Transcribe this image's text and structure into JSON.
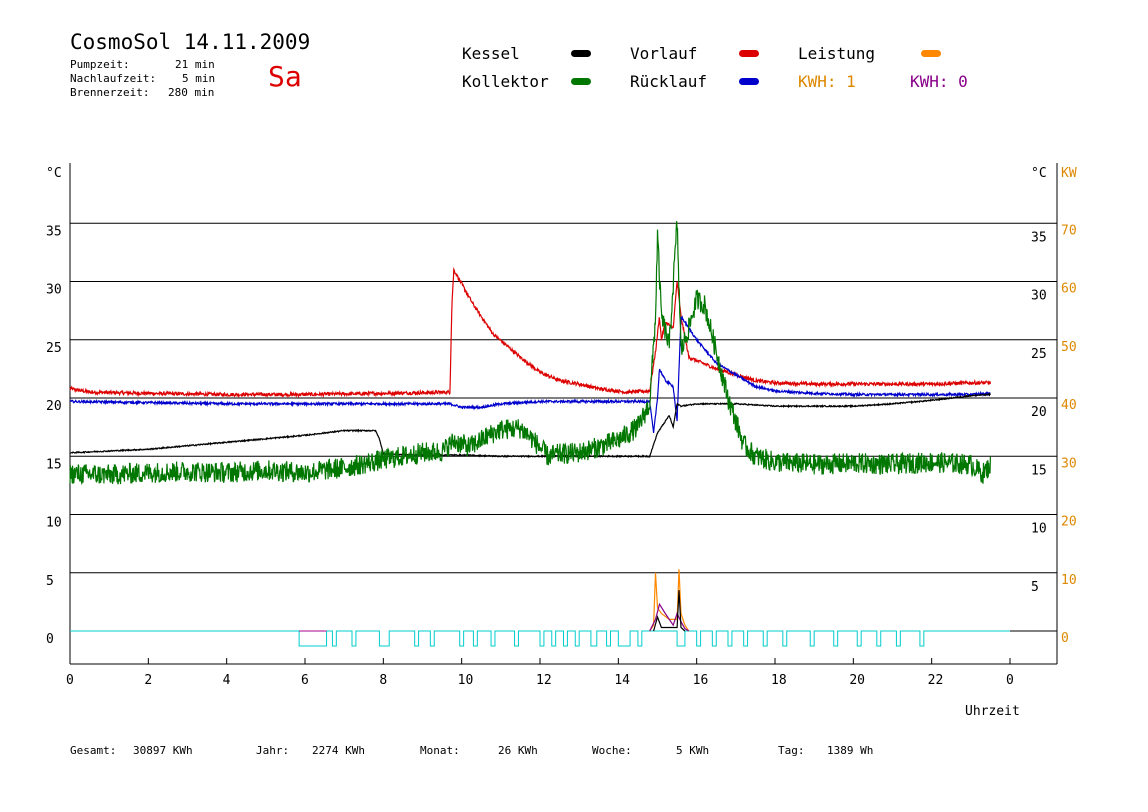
{
  "header": {
    "title": "CosmoSol 14.11.2009",
    "day": "Sa",
    "stats": [
      {
        "label": "Pumpzeit:",
        "value": "21 min"
      },
      {
        "label": "Nachlaufzeit:",
        "value": "5 min"
      },
      {
        "label": "Brennerzeit:",
        "value": "280 min"
      }
    ]
  },
  "legend": {
    "kessel": {
      "label": "Kessel",
      "color": "#000000"
    },
    "kollektor": {
      "label": "Kollektor",
      "color": "#007700"
    },
    "vorlauf": {
      "label": "Vorlauf",
      "color": "#dd0000"
    },
    "ruecklauf": {
      "label": "Rücklauf",
      "color": "#0000cc"
    },
    "leistung": {
      "label": "Leistung",
      "color": "#ff8800"
    },
    "kwh1": {
      "label": "KWH: 1",
      "color": "#dd8800"
    },
    "kwh0": {
      "label": "KWH: 0",
      "color": "#880088"
    }
  },
  "footer": [
    {
      "label": "Gesamt:",
      "value": "30897 KWh"
    },
    {
      "label": "Jahr:",
      "value": "2274 KWh"
    },
    {
      "label": "Monat:",
      "value": "26 KWh"
    },
    {
      "label": "Woche:",
      "value": "5 KWh"
    },
    {
      "label": "Tag:",
      "value": "1389 Wh"
    }
  ],
  "chart_data": {
    "type": "line",
    "xlabel": "Uhrzeit",
    "ylabel_left": "°C",
    "ylabel_right": "°C",
    "ylabel_right2": "KW",
    "xlim": [
      0,
      24
    ],
    "ylim": [
      -3,
      40
    ],
    "x_ticks": [
      "0",
      "2",
      "4",
      "6",
      "8",
      "10",
      "12",
      "14",
      "16",
      "18",
      "20",
      "22",
      "0"
    ],
    "y_ticks_left": [
      0,
      5,
      10,
      15,
      20,
      25,
      30,
      35
    ],
    "y_ticks_right": [
      5,
      10,
      15,
      20,
      25,
      30,
      35
    ],
    "y_ticks_kw": [
      0,
      10,
      20,
      30,
      40,
      50,
      60,
      70
    ],
    "series": [
      {
        "name": "Vorlauf",
        "color": "#dd0000",
        "noise": 0.15,
        "points": [
          [
            0,
            20.8
          ],
          [
            0.5,
            20.5
          ],
          [
            2,
            20.4
          ],
          [
            4,
            20.3
          ],
          [
            6,
            20.3
          ],
          [
            8,
            20.4
          ],
          [
            9.7,
            20.5
          ],
          [
            9.75,
            28
          ],
          [
            9.8,
            31
          ],
          [
            10.3,
            28
          ],
          [
            10.8,
            25.5
          ],
          [
            11.5,
            23.5
          ],
          [
            12,
            22.2
          ],
          [
            12.5,
            21.5
          ],
          [
            13,
            21.2
          ],
          [
            13.5,
            20.8
          ],
          [
            14.2,
            20.5
          ],
          [
            14.8,
            20.6
          ],
          [
            14.95,
            24
          ],
          [
            15.05,
            27
          ],
          [
            15.1,
            25
          ],
          [
            15.2,
            26.5
          ],
          [
            15.4,
            26
          ],
          [
            15.5,
            30
          ],
          [
            15.6,
            27
          ],
          [
            15.8,
            23.5
          ],
          [
            16.5,
            22.5
          ],
          [
            17,
            22
          ],
          [
            17.5,
            21.5
          ],
          [
            18,
            21.3
          ],
          [
            19,
            21.2
          ],
          [
            20,
            21.2
          ],
          [
            21,
            21.2
          ],
          [
            22,
            21.2
          ],
          [
            23,
            21.3
          ],
          [
            23.5,
            21.3
          ]
        ]
      },
      {
        "name": "Rücklauf",
        "color": "#0000cc",
        "noise": 0.1,
        "points": [
          [
            0,
            19.7
          ],
          [
            2,
            19.6
          ],
          [
            4,
            19.5
          ],
          [
            6,
            19.5
          ],
          [
            8,
            19.5
          ],
          [
            9.7,
            19.5
          ],
          [
            10,
            19.2
          ],
          [
            10.5,
            19.2
          ],
          [
            11,
            19.5
          ],
          [
            12,
            19.7
          ],
          [
            13,
            19.7
          ],
          [
            14,
            19.7
          ],
          [
            14.8,
            19.7
          ],
          [
            14.9,
            17
          ],
          [
            15.0,
            20
          ],
          [
            15.05,
            22.5
          ],
          [
            15.2,
            21.5
          ],
          [
            15.4,
            21
          ],
          [
            15.5,
            18
          ],
          [
            15.6,
            27
          ],
          [
            16,
            25
          ],
          [
            16.5,
            23
          ],
          [
            17,
            22
          ],
          [
            17.5,
            21
          ],
          [
            18,
            20.6
          ],
          [
            19,
            20.4
          ],
          [
            20,
            20.3
          ],
          [
            21,
            20.3
          ],
          [
            22,
            20.3
          ],
          [
            23,
            20.3
          ],
          [
            23.5,
            20.4
          ]
        ]
      },
      {
        "name": "Kessel",
        "color": "#000000",
        "noise": 0.05,
        "points": [
          [
            0,
            15.3
          ],
          [
            2,
            15.6
          ],
          [
            4,
            16.2
          ],
          [
            6,
            16.8
          ],
          [
            7,
            17.2
          ],
          [
            7.8,
            17.2
          ],
          [
            7.9,
            16.5
          ],
          [
            8,
            15.2
          ],
          [
            9,
            15.1
          ],
          [
            10,
            15.1
          ],
          [
            11,
            15
          ],
          [
            12,
            15
          ],
          [
            13,
            15
          ],
          [
            14,
            15
          ],
          [
            14.8,
            15
          ],
          [
            15,
            17
          ],
          [
            15.3,
            18.5
          ],
          [
            15.4,
            17.5
          ],
          [
            15.5,
            19.5
          ],
          [
            15.6,
            19.3
          ],
          [
            16,
            19.5
          ],
          [
            17,
            19.5
          ],
          [
            18,
            19.3
          ],
          [
            19,
            19.3
          ],
          [
            20,
            19.3
          ],
          [
            21,
            19.5
          ],
          [
            22,
            19.8
          ],
          [
            23,
            20.2
          ],
          [
            23.5,
            20.3
          ]
        ]
      },
      {
        "name": "Kollektor",
        "color": "#007700",
        "noise": 0.9,
        "points": [
          [
            0,
            13.5
          ],
          [
            1,
            13.4
          ],
          [
            2,
            13.6
          ],
          [
            3,
            13.7
          ],
          [
            4,
            13.6
          ],
          [
            5,
            13.8
          ],
          [
            6,
            13.6
          ],
          [
            7,
            14
          ],
          [
            8,
            14.7
          ],
          [
            9,
            15.3
          ],
          [
            9.5,
            15.4
          ],
          [
            9.8,
            16.3
          ],
          [
            10.2,
            15.8
          ],
          [
            10.7,
            16.8
          ],
          [
            11,
            17.3
          ],
          [
            11.5,
            17.4
          ],
          [
            11.8,
            16.5
          ],
          [
            12.2,
            15
          ],
          [
            12.5,
            15.2
          ],
          [
            13,
            15.3
          ],
          [
            13.5,
            15.8
          ],
          [
            14,
            16.4
          ],
          [
            14.5,
            17.5
          ],
          [
            14.8,
            19.5
          ],
          [
            14.95,
            27
          ],
          [
            15.0,
            34
          ],
          [
            15.1,
            27
          ],
          [
            15.3,
            24.5
          ],
          [
            15.5,
            35
          ],
          [
            15.6,
            24
          ],
          [
            15.8,
            26
          ],
          [
            16,
            28.5
          ],
          [
            16.2,
            28
          ],
          [
            16.5,
            24
          ],
          [
            16.8,
            20
          ],
          [
            17,
            18
          ],
          [
            17.2,
            16
          ],
          [
            17.5,
            15
          ],
          [
            18,
            14.5
          ],
          [
            19,
            14.3
          ],
          [
            20,
            14.4
          ],
          [
            21,
            14.3
          ],
          [
            22,
            14.5
          ],
          [
            23,
            14.3
          ],
          [
            23.3,
            13.5
          ],
          [
            23.5,
            14.2
          ]
        ]
      },
      {
        "name": "Leistung",
        "color": "#ff8800",
        "noise": 0,
        "points": [
          [
            14.8,
            0
          ],
          [
            14.9,
            0.5
          ],
          [
            14.95,
            5
          ],
          [
            15.0,
            2
          ],
          [
            15.1,
            1.5
          ],
          [
            15.3,
            1
          ],
          [
            15.5,
            1
          ],
          [
            15.55,
            5.3
          ],
          [
            15.6,
            1.5
          ],
          [
            15.7,
            0.5
          ],
          [
            15.8,
            0
          ]
        ]
      },
      {
        "name": "KWH-0",
        "color": "#880088",
        "noise": 0,
        "points": [
          [
            14.8,
            0
          ],
          [
            14.95,
            1
          ],
          [
            15.05,
            2.3
          ],
          [
            15.2,
            1.5
          ],
          [
            15.4,
            0.5
          ],
          [
            15.5,
            1.5
          ],
          [
            15.6,
            0.8
          ],
          [
            15.7,
            0.2
          ],
          [
            15.8,
            0
          ]
        ]
      },
      {
        "name": "Kessel-Leistung",
        "color": "#000000",
        "noise": 0,
        "points": [
          [
            14.9,
            0
          ],
          [
            15.0,
            1.2
          ],
          [
            15.1,
            0.3
          ],
          [
            15.5,
            0.3
          ],
          [
            15.55,
            3.5
          ],
          [
            15.6,
            0.3
          ],
          [
            15.7,
            0
          ]
        ]
      }
    ],
    "pump_baseline": 0,
    "pump_intervals": [
      [
        5.85,
        6.55
      ],
      [
        6.7,
        6.8
      ],
      [
        7.2,
        7.3
      ],
      [
        7.9,
        8.15
      ],
      [
        8.8,
        8.9
      ],
      [
        9.2,
        9.3
      ],
      [
        9.95,
        10.05
      ],
      [
        10.3,
        10.4
      ],
      [
        10.75,
        10.85
      ],
      [
        11.35,
        11.45
      ],
      [
        12.0,
        12.1
      ],
      [
        12.3,
        12.4
      ],
      [
        12.6,
        12.7
      ],
      [
        12.9,
        13.0
      ],
      [
        13.3,
        13.45
      ],
      [
        13.7,
        13.8
      ],
      [
        14.0,
        14.3
      ],
      [
        14.5,
        14.6
      ],
      [
        15.5,
        15.7
      ],
      [
        16.0,
        16.1
      ],
      [
        16.4,
        16.5
      ],
      [
        16.8,
        16.9
      ],
      [
        17.2,
        17.3
      ],
      [
        17.7,
        17.8
      ],
      [
        18.2,
        18.3
      ],
      [
        18.9,
        19.0
      ],
      [
        19.5,
        19.6
      ],
      [
        20.1,
        20.2
      ],
      [
        20.6,
        20.7
      ],
      [
        21.1,
        21.2
      ],
      [
        21.7,
        21.8
      ]
    ]
  }
}
